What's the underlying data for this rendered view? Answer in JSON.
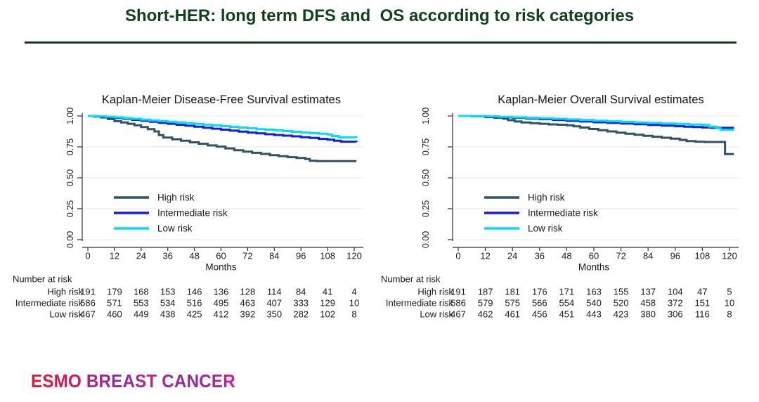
{
  "page": {
    "title": "Short-HER: long term DFS and  OS according to risk categories"
  },
  "footer": {
    "logo_text": "ESMO BREAST CANCER"
  },
  "colors": {
    "title_green": "#12421C",
    "rule_green": "#15391A",
    "high_risk": "#2F5266",
    "intermediate_risk": "#1A1AE0",
    "low_risk": "#00E1F0",
    "grid": "#E9EFF4",
    "axis": "#303030",
    "text": "#1A1A1A"
  },
  "chart_data": [
    {
      "type": "line",
      "subtype": "kaplan-meier-step",
      "title": "Kaplan-Meier Disease-Free Survival estimates",
      "xlabel": "Months",
      "xlim": [
        0,
        120
      ],
      "ylim": [
        0,
        1
      ],
      "grid": true,
      "legend_position": "lower-left",
      "x_ticks": [
        0,
        12,
        24,
        36,
        48,
        60,
        72,
        84,
        96,
        108,
        120
      ],
      "y_tick_labels": [
        "1.00",
        "0.75",
        "0.50",
        "0.25",
        "0.00"
      ],
      "series": [
        {
          "name": "High risk",
          "color": "#2F5266",
          "points": [
            [
              0,
              1
            ],
            [
              3,
              0.995
            ],
            [
              6,
              0.988
            ],
            [
              9,
              0.975
            ],
            [
              12,
              0.958
            ],
            [
              15,
              0.947
            ],
            [
              18,
              0.937
            ],
            [
              21,
              0.925
            ],
            [
              24,
              0.91
            ],
            [
              27,
              0.893
            ],
            [
              30,
              0.875
            ],
            [
              32,
              0.845
            ],
            [
              34,
              0.825
            ],
            [
              38,
              0.812
            ],
            [
              42,
              0.8
            ],
            [
              46,
              0.787
            ],
            [
              50,
              0.775
            ],
            [
              54,
              0.762
            ],
            [
              58,
              0.752
            ],
            [
              62,
              0.738
            ],
            [
              66,
              0.723
            ],
            [
              70,
              0.712
            ],
            [
              74,
              0.702
            ],
            [
              78,
              0.693
            ],
            [
              82,
              0.683
            ],
            [
              86,
              0.675
            ],
            [
              90,
              0.667
            ],
            [
              94,
              0.66
            ],
            [
              98,
              0.652
            ],
            [
              100,
              0.638
            ],
            [
              103,
              0.635
            ],
            [
              121,
              0.635
            ]
          ]
        },
        {
          "name": "Intermediate risk",
          "color": "#1A1AE0",
          "points": [
            [
              0,
              1
            ],
            [
              4,
              0.997
            ],
            [
              8,
              0.991
            ],
            [
              12,
              0.984
            ],
            [
              16,
              0.977
            ],
            [
              20,
              0.969
            ],
            [
              24,
              0.961
            ],
            [
              28,
              0.953
            ],
            [
              32,
              0.945
            ],
            [
              36,
              0.937
            ],
            [
              40,
              0.929
            ],
            [
              44,
              0.921
            ],
            [
              48,
              0.913
            ],
            [
              52,
              0.905
            ],
            [
              56,
              0.897
            ],
            [
              60,
              0.889
            ],
            [
              64,
              0.881
            ],
            [
              68,
              0.874
            ],
            [
              72,
              0.866
            ],
            [
              76,
              0.859
            ],
            [
              80,
              0.852
            ],
            [
              84,
              0.846
            ],
            [
              88,
              0.841
            ],
            [
              92,
              0.835
            ],
            [
              96,
              0.828
            ],
            [
              100,
              0.822
            ],
            [
              104,
              0.815
            ],
            [
              108,
              0.808
            ],
            [
              111,
              0.8
            ],
            [
              114,
              0.792
            ],
            [
              121,
              0.79
            ]
          ]
        },
        {
          "name": "Low risk",
          "color": "#00E1F0",
          "points": [
            [
              0,
              1
            ],
            [
              4,
              0.998
            ],
            [
              8,
              0.994
            ],
            [
              12,
              0.989
            ],
            [
              16,
              0.983
            ],
            [
              20,
              0.977
            ],
            [
              24,
              0.971
            ],
            [
              28,
              0.965
            ],
            [
              32,
              0.959
            ],
            [
              36,
              0.953
            ],
            [
              40,
              0.947
            ],
            [
              44,
              0.942
            ],
            [
              48,
              0.936
            ],
            [
              52,
              0.93
            ],
            [
              56,
              0.924
            ],
            [
              60,
              0.918
            ],
            [
              64,
              0.912
            ],
            [
              68,
              0.906
            ],
            [
              72,
              0.9
            ],
            [
              76,
              0.894
            ],
            [
              80,
              0.889
            ],
            [
              84,
              0.884
            ],
            [
              88,
              0.878
            ],
            [
              92,
              0.872
            ],
            [
              96,
              0.866
            ],
            [
              100,
              0.861
            ],
            [
              104,
              0.856
            ],
            [
              108,
              0.85
            ],
            [
              110,
              0.838
            ],
            [
              113,
              0.827
            ],
            [
              121,
              0.822
            ]
          ]
        }
      ],
      "number_at_risk": {
        "label": "Number at risk",
        "rows": [
          {
            "name": "High risk",
            "counts": [
              191,
              179,
              168,
              153,
              146,
              136,
              128,
              114,
              84,
              41,
              4
            ]
          },
          {
            "name": "Intermediate risk",
            "counts": [
              586,
              571,
              553,
              534,
              516,
              495,
              463,
              407,
              333,
              129,
              10
            ]
          },
          {
            "name": "Low risk",
            "counts": [
              467,
              460,
              449,
              438,
              425,
              412,
              392,
              350,
              282,
              102,
              8
            ]
          }
        ]
      }
    },
    {
      "type": "line",
      "subtype": "kaplan-meier-step",
      "title": "Kaplan-Meier Overall Survival estimates",
      "xlabel": "Months",
      "xlim": [
        0,
        120
      ],
      "ylim": [
        0,
        1
      ],
      "grid": true,
      "legend_position": "lower-left",
      "x_ticks": [
        0,
        12,
        24,
        36,
        48,
        60,
        72,
        84,
        96,
        108,
        120
      ],
      "y_tick_labels": [
        "1.00",
        "0.75",
        "0.50",
        "0.25",
        "0.00"
      ],
      "series": [
        {
          "name": "High risk",
          "color": "#2F5266",
          "points": [
            [
              0,
              1
            ],
            [
              6,
              0.997
            ],
            [
              12,
              0.991
            ],
            [
              16,
              0.985
            ],
            [
              20,
              0.978
            ],
            [
              22,
              0.966
            ],
            [
              25,
              0.955
            ],
            [
              28,
              0.948
            ],
            [
              32,
              0.942
            ],
            [
              36,
              0.937
            ],
            [
              40,
              0.932
            ],
            [
              44,
              0.929
            ],
            [
              48,
              0.925
            ],
            [
              51,
              0.916
            ],
            [
              54,
              0.906
            ],
            [
              58,
              0.895
            ],
            [
              62,
              0.885
            ],
            [
              66,
              0.875
            ],
            [
              70,
              0.865
            ],
            [
              74,
              0.856
            ],
            [
              78,
              0.848
            ],
            [
              82,
              0.84
            ],
            [
              86,
              0.832
            ],
            [
              90,
              0.824
            ],
            [
              94,
              0.817
            ],
            [
              98,
              0.806
            ],
            [
              101,
              0.797
            ],
            [
              105,
              0.792
            ],
            [
              109,
              0.79
            ],
            [
              117,
              0.79
            ],
            [
              118,
              0.692
            ],
            [
              122,
              0.692
            ]
          ]
        },
        {
          "name": "Intermediate risk",
          "color": "#1A1AE0",
          "points": [
            [
              0,
              1
            ],
            [
              6,
              0.998
            ],
            [
              12,
              0.995
            ],
            [
              18,
              0.99
            ],
            [
              24,
              0.985
            ],
            [
              30,
              0.979
            ],
            [
              36,
              0.974
            ],
            [
              42,
              0.967
            ],
            [
              48,
              0.961
            ],
            [
              54,
              0.955
            ],
            [
              60,
              0.949
            ],
            [
              66,
              0.944
            ],
            [
              72,
              0.939
            ],
            [
              78,
              0.933
            ],
            [
              84,
              0.928
            ],
            [
              90,
              0.922
            ],
            [
              96,
              0.917
            ],
            [
              100,
              0.913
            ],
            [
              104,
              0.91
            ],
            [
              108,
              0.907
            ],
            [
              112,
              0.904
            ],
            [
              122,
              0.904
            ]
          ]
        },
        {
          "name": "Low risk",
          "color": "#00E1F0",
          "points": [
            [
              0,
              1
            ],
            [
              6,
              0.999
            ],
            [
              12,
              0.997
            ],
            [
              18,
              0.993
            ],
            [
              24,
              0.989
            ],
            [
              30,
              0.985
            ],
            [
              36,
              0.981
            ],
            [
              42,
              0.977
            ],
            [
              48,
              0.972
            ],
            [
              54,
              0.967
            ],
            [
              60,
              0.962
            ],
            [
              66,
              0.957
            ],
            [
              72,
              0.952
            ],
            [
              78,
              0.947
            ],
            [
              84,
              0.943
            ],
            [
              90,
              0.939
            ],
            [
              96,
              0.935
            ],
            [
              102,
              0.931
            ],
            [
              108,
              0.927
            ],
            [
              111,
              0.914
            ],
            [
              114,
              0.9
            ],
            [
              116,
              0.888
            ],
            [
              122,
              0.888
            ]
          ]
        }
      ],
      "number_at_risk": {
        "label": "Number at risk",
        "rows": [
          {
            "name": "High risk",
            "counts": [
              191,
              187,
              181,
              176,
              171,
              163,
              155,
              137,
              104,
              47,
              5
            ]
          },
          {
            "name": "Intermediate risk",
            "counts": [
              586,
              579,
              575,
              566,
              554,
              540,
              520,
              458,
              372,
              151,
              10
            ]
          },
          {
            "name": "Low risk",
            "counts": [
              467,
              462,
              461,
              456,
              451,
              443,
              423,
              380,
              306,
              116,
              8
            ]
          }
        ]
      }
    }
  ]
}
